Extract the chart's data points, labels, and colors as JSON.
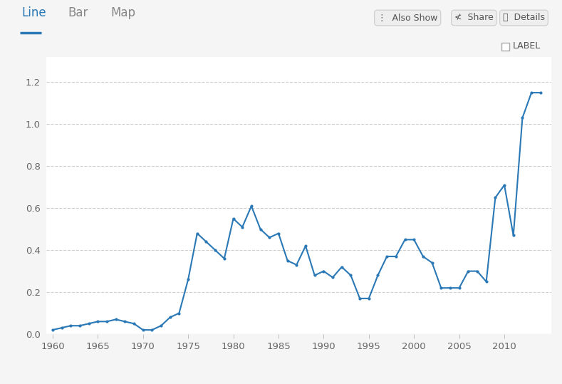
{
  "years": [
    1960,
    1961,
    1962,
    1963,
    1964,
    1965,
    1966,
    1967,
    1968,
    1969,
    1970,
    1971,
    1972,
    1973,
    1974,
    1975,
    1976,
    1977,
    1978,
    1979,
    1980,
    1981,
    1982,
    1983,
    1984,
    1985,
    1986,
    1987,
    1988,
    1989,
    1990,
    1991,
    1992,
    1993,
    1994,
    1995,
    1996,
    1997,
    1998,
    1999,
    2000,
    2001,
    2002,
    2003,
    2004,
    2005,
    2006,
    2007,
    2008,
    2009,
    2010,
    2011,
    2012,
    2013,
    2014
  ],
  "values": [
    0.02,
    0.03,
    0.04,
    0.04,
    0.05,
    0.06,
    0.06,
    0.07,
    0.06,
    0.05,
    0.02,
    0.02,
    0.04,
    0.08,
    0.1,
    0.26,
    0.48,
    0.44,
    0.4,
    0.36,
    0.55,
    0.51,
    0.61,
    0.5,
    0.46,
    0.48,
    0.35,
    0.33,
    0.42,
    0.28,
    0.3,
    0.27,
    0.32,
    0.28,
    0.17,
    0.17,
    0.28,
    0.37,
    0.37,
    0.45,
    0.45,
    0.37,
    0.34,
    0.22,
    0.22,
    0.22,
    0.3,
    0.3,
    0.25,
    0.65,
    0.71,
    0.47,
    1.03,
    1.15,
    1.15
  ],
  "line_color": "#2a78b5",
  "marker_color": "#2a78b5",
  "chart_bg": "#ffffff",
  "outer_bg": "#f5f5f5",
  "header_bg": "#ffffff",
  "grid_color": "#d0d0d0",
  "ylim": [
    0,
    1.32
  ],
  "yticks": [
    0.0,
    0.2,
    0.4,
    0.6,
    0.8,
    1.0,
    1.2
  ],
  "xticks": [
    1960,
    1965,
    1970,
    1975,
    1980,
    1985,
    1990,
    1995,
    2000,
    2005,
    2010
  ],
  "header_tabs": [
    "Line",
    "Bar",
    "Map"
  ],
  "active_tab": "Line",
  "label_text": "LABEL",
  "top_buttons": [
    "Also Show",
    "Share",
    "Details"
  ],
  "tab_active_color": "#2a78b5",
  "tab_inactive_color": "#888888",
  "figwidth": 7.89,
  "figheight": 5.39,
  "dpi": 100
}
